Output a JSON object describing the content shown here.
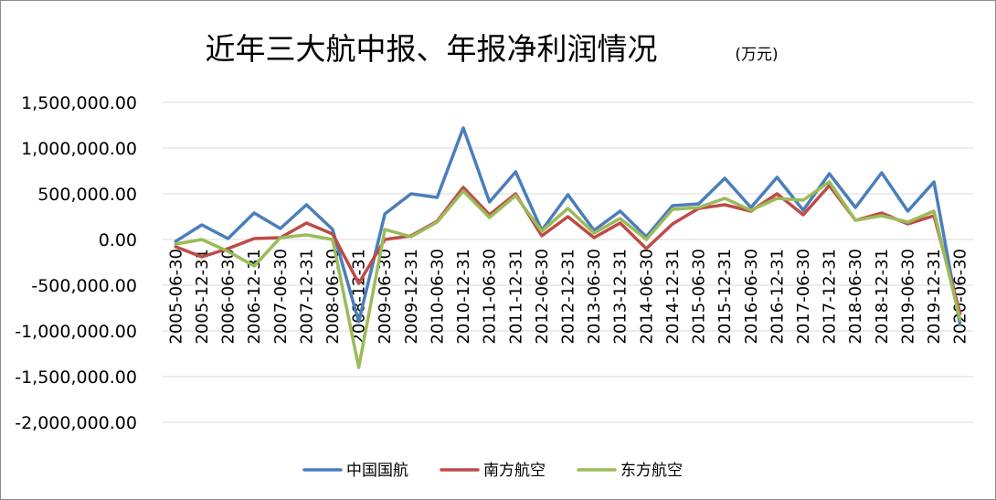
{
  "chart_data": {
    "type": "line",
    "title": "近年三大航中报、年报净利润情况",
    "unit": "(万元)",
    "ylim": [
      -2000000,
      1500000
    ],
    "yticks": [
      1500000,
      1000000,
      500000,
      0,
      -500000,
      -1000000,
      -1500000,
      -2000000
    ],
    "ytick_labels": [
      "1,500,000.00",
      "1,000,000.00",
      "500,000.00",
      "0.00",
      "-500,000.00",
      "-1,000,000.00",
      "-1,500,000.00",
      "-2,000,000.00"
    ],
    "grid": true,
    "legend_position": "bottom",
    "categories": [
      "2005-06-30",
      "2005-12-31",
      "2006-06-30",
      "2006-12-31",
      "2007-06-30",
      "2007-12-31",
      "2008-06-30",
      "2008-12-31",
      "2009-06-30",
      "2009-12-31",
      "2010-06-30",
      "2010-12-31",
      "2011-06-30",
      "2011-12-31",
      "2012-06-30",
      "2012-12-31",
      "2013-06-30",
      "2013-12-31",
      "2014-06-30",
      "2014-12-31",
      "2015-06-30",
      "2015-12-31",
      "2016-06-30",
      "2016-12-31",
      "2017-06-30",
      "2017-12-31",
      "2018-06-30",
      "2018-12-31",
      "2019-06-30",
      "2019-12-31",
      "2020-06-30"
    ],
    "series": [
      {
        "name": "中国国航",
        "color": "#4a7ebb",
        "values": [
          -20000,
          160000,
          10000,
          290000,
          120000,
          380000,
          110000,
          -900000,
          280000,
          500000,
          460000,
          1220000,
          410000,
          740000,
          100000,
          490000,
          100000,
          310000,
          30000,
          370000,
          390000,
          670000,
          350000,
          680000,
          320000,
          720000,
          350000,
          730000,
          310000,
          630000,
          -930000
        ]
      },
      {
        "name": "南方航空",
        "color": "#be4b48",
        "values": [
          -80000,
          -190000,
          -100000,
          10000,
          20000,
          180000,
          60000,
          -480000,
          0,
          40000,
          200000,
          570000,
          270000,
          500000,
          40000,
          250000,
          20000,
          180000,
          -100000,
          170000,
          340000,
          380000,
          310000,
          500000,
          270000,
          590000,
          210000,
          290000,
          170000,
          260000,
          -810000
        ]
      },
      {
        "name": "东方航空",
        "color": "#9bbb59",
        "values": [
          -50000,
          0,
          -130000,
          -290000,
          20000,
          50000,
          0,
          -1400000,
          110000,
          30000,
          190000,
          530000,
          240000,
          480000,
          90000,
          340000,
          70000,
          230000,
          0,
          330000,
          350000,
          450000,
          320000,
          450000,
          430000,
          630000,
          210000,
          260000,
          190000,
          310000,
          -880000
        ]
      }
    ]
  }
}
